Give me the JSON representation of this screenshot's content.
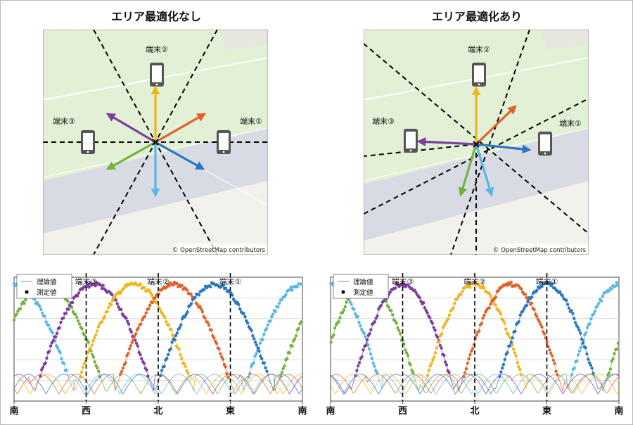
{
  "panels": [
    {
      "title": "エリア最適化なし",
      "attribution": "© OpenStreetMap contributors",
      "terminals": [
        "端末②",
        "端末③",
        "端末①"
      ],
      "beam_colors": [
        "#f1b51c",
        "#e0622a",
        "#2a77c0",
        "#5ab6e6",
        "#74b23f",
        "#7d3e9d"
      ]
    },
    {
      "title": "エリア最適化あり",
      "attribution": "© OpenStreetMap contributors",
      "terminals": [
        "端末②",
        "端末③",
        "端末①"
      ],
      "beam_colors": [
        "#f1b51c",
        "#e0622a",
        "#2a77c0",
        "#5ab6e6",
        "#74b23f",
        "#7d3e9d"
      ]
    }
  ],
  "chart_data": [
    {
      "type": "line",
      "legend": {
        "items": [
          "理論値",
          "測定値"
        ],
        "placement": "top-left"
      },
      "x_ticks": [
        "南",
        "西",
        "北",
        "東",
        "南"
      ],
      "x_range": [
        0,
        360
      ],
      "markers": [
        {
          "label": "端末③",
          "x": 90
        },
        {
          "label": "端末②",
          "x": 180
        },
        {
          "label": "端末①",
          "x": 270
        }
      ],
      "grid": true
    },
    {
      "type": "line",
      "legend": {
        "items": [
          "理論値",
          "測定値"
        ],
        "placement": "top-left"
      },
      "x_ticks": [
        "南",
        "西",
        "北",
        "東",
        "南"
      ],
      "x_range": [
        0,
        360
      ],
      "markers": [
        {
          "label": "端末③",
          "x": 90
        },
        {
          "label": "端末②",
          "x": 180
        },
        {
          "label": "端末①",
          "x": 270
        }
      ],
      "grid": true
    }
  ]
}
